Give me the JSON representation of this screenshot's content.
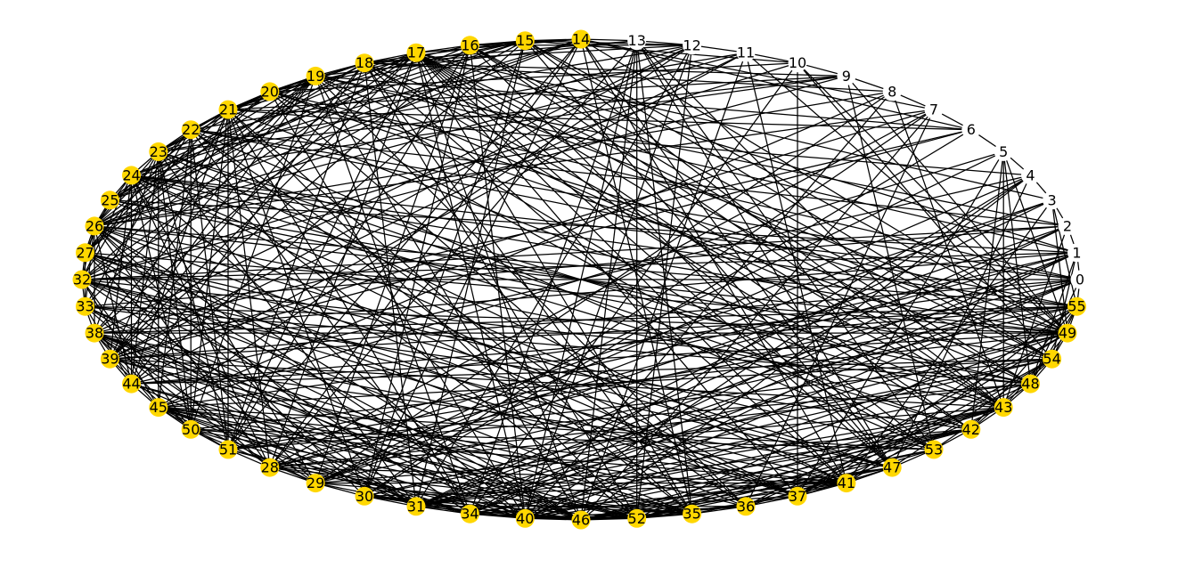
{
  "graph": {
    "colors": {
      "highlight_node": "#FFD700",
      "plain_node": "#ffffff",
      "edge": "#000000",
      "label": "#000000"
    },
    "white_nodes": [
      "0",
      "1",
      "2",
      "3",
      "4",
      "5",
      "6",
      "7",
      "8",
      "9",
      "10",
      "11",
      "12",
      "13"
    ],
    "yellow_nodes": [
      "14",
      "15",
      "16",
      "17",
      "18",
      "19",
      "20",
      "21",
      "22",
      "23",
      "24",
      "25",
      "26",
      "27",
      "32",
      "33",
      "38",
      "39",
      "44",
      "45",
      "50",
      "51",
      "28",
      "29",
      "30",
      "31",
      "34",
      "40",
      "46",
      "52",
      "35",
      "36",
      "37",
      "41",
      "47",
      "53",
      "42",
      "43",
      "48",
      "54",
      "49",
      "55"
    ],
    "circle_order": [
      "0",
      "1",
      "2",
      "3",
      "4",
      "5",
      "6",
      "7",
      "8",
      "9",
      "10",
      "11",
      "12",
      "13",
      "14",
      "15",
      "16",
      "17",
      "18",
      "19",
      "20",
      "21",
      "22",
      "23",
      "24",
      "25",
      "26",
      "27",
      "32",
      "33",
      "38",
      "39",
      "44",
      "45",
      "50",
      "51",
      "28",
      "29",
      "30",
      "31",
      "34",
      "40",
      "46",
      "52",
      "35",
      "36",
      "37",
      "41",
      "47",
      "53",
      "42",
      "43",
      "48",
      "54",
      "49",
      "55"
    ]
  }
}
